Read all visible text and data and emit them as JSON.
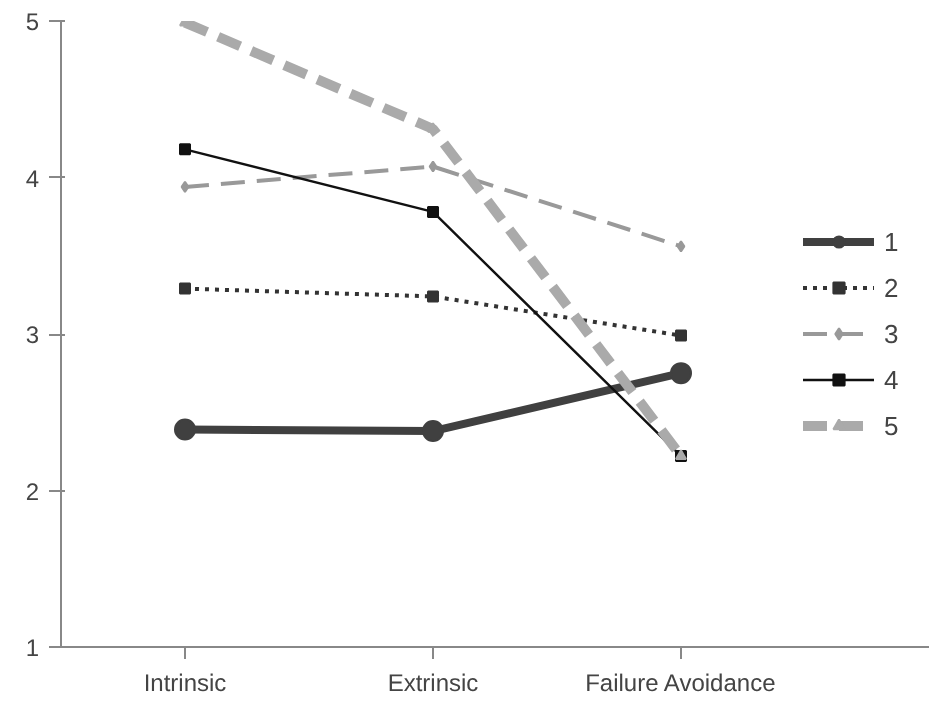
{
  "chart_data": {
    "type": "line",
    "categories": [
      "Intrinsic",
      "Extrinsic",
      "Failure Avoidance"
    ],
    "series": [
      {
        "name": "1",
        "color": "#404040",
        "values": [
          2.39,
          2.38,
          2.75
        ],
        "marker": "circle",
        "line_style": "solid"
      },
      {
        "name": "2",
        "color": "#333333",
        "values": [
          3.29,
          3.24,
          2.99
        ],
        "marker": "square",
        "line_style": "dotted"
      },
      {
        "name": "3",
        "color": "#999999",
        "values": [
          3.94,
          4.07,
          3.56
        ],
        "marker": "diamond",
        "line_style": "dashed"
      },
      {
        "name": "4",
        "color": "#111111",
        "values": [
          4.18,
          3.78,
          2.22
        ],
        "marker": "square",
        "line_style": "solid"
      },
      {
        "name": "5",
        "color": "#aaaaaa",
        "values": [
          4.99,
          4.31,
          2.22
        ],
        "marker": "triangle",
        "line_style": "dashed"
      }
    ],
    "ylim": [
      1,
      5
    ],
    "yticks": [
      1,
      2,
      3,
      4,
      5
    ],
    "grid": false,
    "legend": "right"
  }
}
